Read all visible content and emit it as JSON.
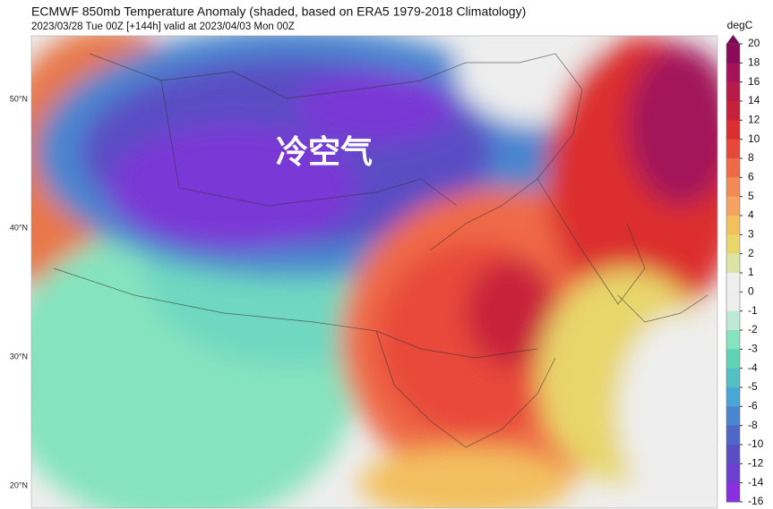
{
  "header": {
    "title": "ECMWF 850mb Temperature Anomaly (shaded, based on ERA5 1979-2018 Climatology)",
    "subtitle": "2023/03/28 Tue 00Z [+144h] valid at 2023/04/03 Mon 00Z"
  },
  "map": {
    "annotation": "冷空气",
    "lat_labels": [
      "50°N",
      "40°N",
      "30°N",
      "20°N"
    ]
  },
  "colorbar": {
    "unit": "degC",
    "ticks": [
      20,
      18,
      16,
      14,
      12,
      10,
      8,
      6,
      5,
      4,
      3,
      2,
      1,
      0,
      -1,
      -2,
      -3,
      -4,
      -5,
      -6,
      -8,
      -10,
      -12,
      -14,
      -16
    ],
    "extend_color": "#7a0a55",
    "colors": [
      "#8b0a5a",
      "#a3125a",
      "#b81a4a",
      "#c8203a",
      "#dc2e2e",
      "#e8483a",
      "#ef6a46",
      "#f28a55",
      "#f4a460",
      "#f3c05e",
      "#e8d66a",
      "#dde3a5",
      "#efefef",
      "#eeeeee",
      "#bde9d6",
      "#86e3bf",
      "#5fd4b5",
      "#52c0c4",
      "#4aa6d4",
      "#4a86cf",
      "#4d68c6",
      "#5a4ec4",
      "#6c3fd0",
      "#8a2fe0"
    ]
  }
}
